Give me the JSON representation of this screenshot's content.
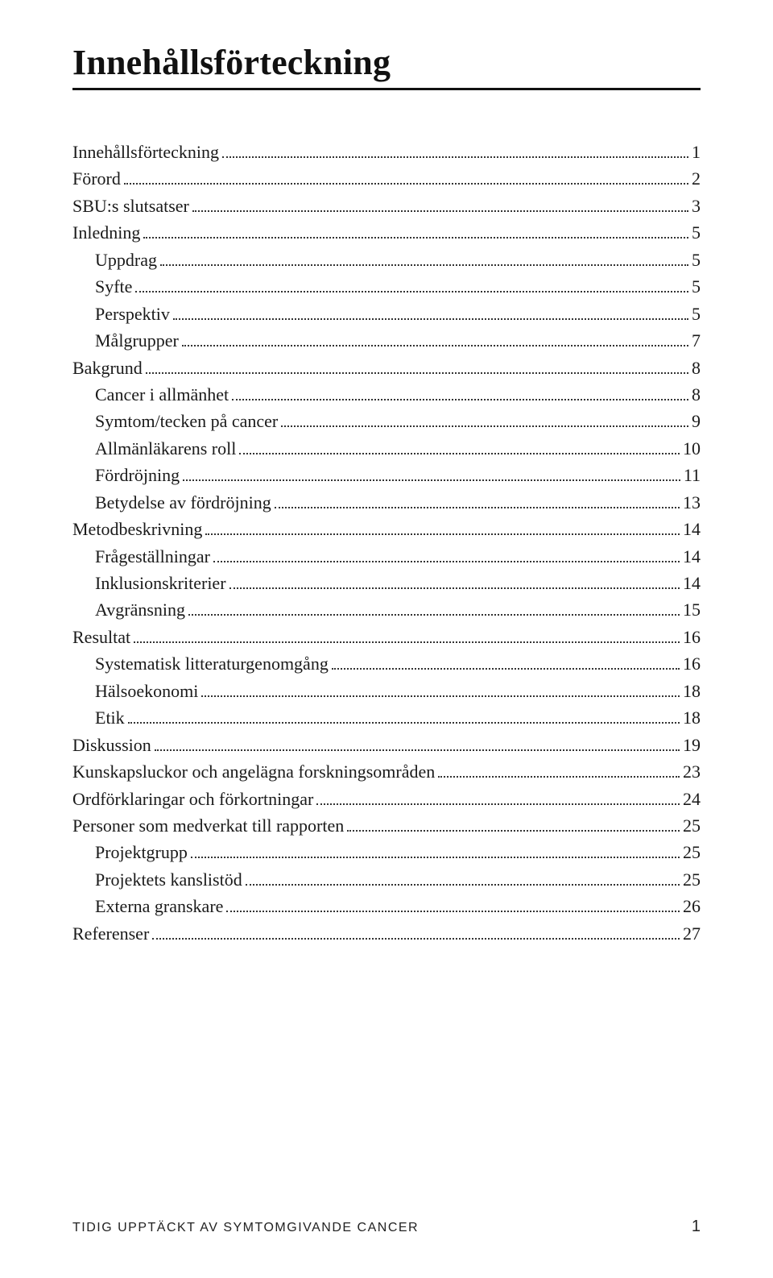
{
  "title": "Innehållsförteckning",
  "toc": [
    {
      "label": "Innehållsförteckning",
      "page": "1",
      "indent": 0
    },
    {
      "label": "Förord",
      "page": "2",
      "indent": 0
    },
    {
      "label": "SBU:s slutsatser",
      "page": "3",
      "indent": 0
    },
    {
      "label": "Inledning",
      "page": "5",
      "indent": 0
    },
    {
      "label": "Uppdrag",
      "page": "5",
      "indent": 1
    },
    {
      "label": "Syfte",
      "page": "5",
      "indent": 1
    },
    {
      "label": "Perspektiv",
      "page": "5",
      "indent": 1
    },
    {
      "label": "Målgrupper",
      "page": "7",
      "indent": 1
    },
    {
      "label": "Bakgrund",
      "page": "8",
      "indent": 0
    },
    {
      "label": "Cancer i allmänhet",
      "page": "8",
      "indent": 1
    },
    {
      "label": "Symtom/tecken på cancer",
      "page": "9",
      "indent": 1
    },
    {
      "label": "Allmänläkarens roll",
      "page": "10",
      "indent": 1
    },
    {
      "label": "Fördröjning",
      "page": "11",
      "indent": 1
    },
    {
      "label": "Betydelse av fördröjning",
      "page": "13",
      "indent": 1
    },
    {
      "label": "Metodbeskrivning",
      "page": "14",
      "indent": 0
    },
    {
      "label": "Frågeställningar",
      "page": "14",
      "indent": 1
    },
    {
      "label": "Inklusionskriterier",
      "page": "14",
      "indent": 1
    },
    {
      "label": "Avgränsning",
      "page": "15",
      "indent": 1
    },
    {
      "label": "Resultat",
      "page": "16",
      "indent": 0
    },
    {
      "label": "Systematisk litteraturgenomgång",
      "page": "16",
      "indent": 1
    },
    {
      "label": "Hälsoekonomi",
      "page": "18",
      "indent": 1
    },
    {
      "label": "Etik",
      "page": "18",
      "indent": 1
    },
    {
      "label": "Diskussion",
      "page": "19",
      "indent": 0
    },
    {
      "label": "Kunskapsluckor och angelägna forskningsområden",
      "page": "23",
      "indent": 0
    },
    {
      "label": "Ordförklaringar och förkortningar",
      "page": "24",
      "indent": 0
    },
    {
      "label": "Personer som medverkat till rapporten",
      "page": "25",
      "indent": 0
    },
    {
      "label": "Projektgrupp",
      "page": "25",
      "indent": 1
    },
    {
      "label": "Projektets kanslistöd",
      "page": "25",
      "indent": 1
    },
    {
      "label": "Externa granskare",
      "page": "26",
      "indent": 1
    },
    {
      "label": "Referenser",
      "page": "27",
      "indent": 0
    }
  ],
  "footer": {
    "text": "TIDIG UPPTÄCKT AV SYMTOMGIVANDE CANCER",
    "page_number": "1"
  }
}
